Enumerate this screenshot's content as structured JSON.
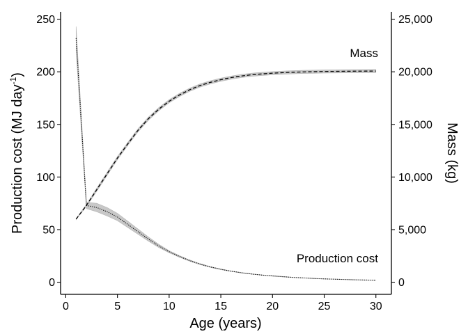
{
  "chart_data": {
    "type": "line",
    "xlabel": "Age (years)",
    "ylabel_left": "Production cost (MJ day",
    "ylabel_left_superscript": "-1",
    "ylabel_left_suffix": ")",
    "ylabel_right": "Mass (kg)",
    "xlim": [
      -0.5,
      31.5
    ],
    "ylim_left": [
      -11.5,
      257
    ],
    "ylim_right": [
      -1150,
      25700
    ],
    "x_ticks": [
      0,
      5,
      10,
      15,
      20,
      25,
      30
    ],
    "x_tick_labels": [
      "0",
      "5",
      "10",
      "15",
      "20",
      "25",
      "30"
    ],
    "y_left_ticks": [
      0,
      50,
      100,
      150,
      200,
      250
    ],
    "y_left_tick_labels": [
      "0",
      "50",
      "100",
      "150",
      "200",
      "250"
    ],
    "y_right_ticks": [
      0,
      5000,
      10000,
      15000,
      20000,
      25000
    ],
    "y_right_tick_labels": [
      "0",
      "5,000",
      "10,000",
      "15,000",
      "20,000",
      "25,000"
    ],
    "grid": false,
    "legend": "none",
    "annotations": [
      {
        "text": "Mass",
        "x": 30,
        "y": 20100,
        "axis": "right"
      },
      {
        "text": "Production cost",
        "x": 30,
        "y": 3.5,
        "axis": "left"
      }
    ],
    "series": [
      {
        "name": "Mass",
        "axis": "right",
        "line_style": "dashed",
        "x": [
          1,
          2,
          3,
          4,
          5,
          6,
          7,
          8,
          9,
          10,
          11,
          12,
          13,
          14,
          15,
          16,
          17,
          18,
          19,
          20,
          21,
          22,
          23,
          24,
          25,
          26,
          27,
          28,
          29,
          30
        ],
        "y": [
          6000,
          7300,
          8800,
          10300,
          11800,
          13150,
          14450,
          15550,
          16450,
          17200,
          17800,
          18300,
          18700,
          19000,
          19250,
          19450,
          19600,
          19720,
          19800,
          19870,
          19920,
          19960,
          19990,
          20010,
          20030,
          20040,
          20050,
          20060,
          20065,
          20070
        ],
        "band_lower": [
          5950,
          7200,
          8650,
          10150,
          11650,
          13000,
          14300,
          15400,
          16300,
          17050,
          17650,
          18150,
          18550,
          18850,
          19100,
          19300,
          19450,
          19570,
          19650,
          19720,
          19770,
          19810,
          19840,
          19860,
          19880,
          19890,
          19900,
          19910,
          19915,
          19920
        ],
        "band_upper": [
          6050,
          7400,
          8950,
          10450,
          11950,
          13300,
          14600,
          15700,
          16600,
          17350,
          17950,
          18450,
          18850,
          19150,
          19400,
          19600,
          19750,
          19870,
          19950,
          20020,
          20070,
          20110,
          20140,
          20160,
          20180,
          20190,
          20200,
          20210,
          20215,
          20220
        ]
      },
      {
        "name": "Production cost",
        "axis": "left",
        "line_style": "dotted",
        "x": [
          1,
          2,
          3,
          4,
          5,
          6,
          7,
          8,
          9,
          10,
          11,
          12,
          13,
          14,
          15,
          16,
          17,
          18,
          19,
          20,
          21,
          22,
          23,
          24,
          25,
          26,
          27,
          28,
          29,
          30
        ],
        "y": [
          232,
          73,
          71,
          67,
          62,
          55,
          48,
          41,
          34.5,
          29,
          24.5,
          20.5,
          17.2,
          14.5,
          12.3,
          10.5,
          9,
          7.8,
          6.8,
          6,
          5.3,
          4.6,
          4.1,
          3.6,
          3.2,
          2.9,
          2.6,
          2.3,
          2.1,
          1.9
        ],
        "band_lower": [
          220,
          70,
          67,
          63,
          58.5,
          52,
          45.5,
          39,
          33,
          28,
          23.7,
          19.9,
          16.7,
          14.1,
          12,
          10.3,
          8.8,
          7.6,
          6.6,
          5.8,
          5.1,
          4.5,
          4,
          3.5,
          3.1,
          2.8,
          2.5,
          2.2,
          2,
          1.8
        ],
        "band_upper": [
          243,
          76,
          75,
          71,
          65.5,
          58,
          50.5,
          43,
          36,
          30,
          25.3,
          21.1,
          17.7,
          14.9,
          12.6,
          10.7,
          9.2,
          8,
          7,
          6.2,
          5.5,
          4.7,
          4.2,
          3.7,
          3.3,
          3,
          2.7,
          2.4,
          2.2,
          2
        ]
      }
    ]
  }
}
